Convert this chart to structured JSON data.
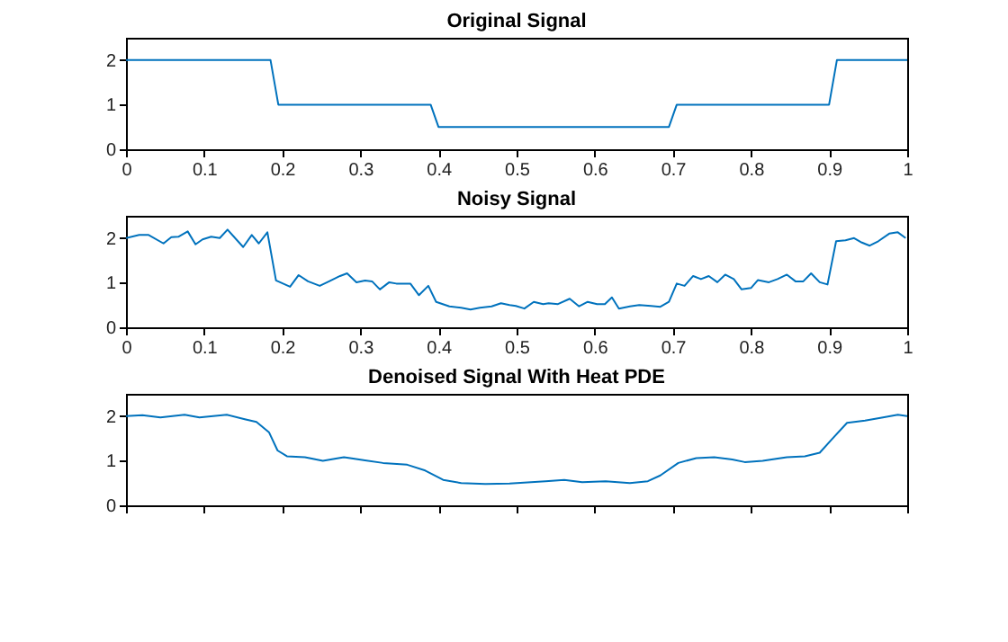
{
  "chart_data": [
    {
      "type": "line",
      "title": "Original Signal",
      "color": "#0072bd",
      "grid": false,
      "xlim": [
        0,
        1
      ],
      "ylim": [
        0,
        2.5
      ],
      "xticks": [
        0,
        0.1,
        0.2,
        0.3,
        0.4,
        0.5,
        0.6,
        0.7,
        0.8,
        0.9,
        1
      ],
      "yticks": [
        0,
        1,
        2
      ],
      "x": [
        0,
        0.185,
        0.195,
        0.39,
        0.4,
        0.695,
        0.705,
        0.9,
        0.91,
        1
      ],
      "values": [
        2,
        2,
        1,
        1,
        0.5,
        0.5,
        1,
        1,
        2,
        2
      ]
    },
    {
      "type": "line",
      "title": "Noisy Signal",
      "color": "#0072bd",
      "grid": false,
      "xlim": [
        0,
        1
      ],
      "ylim": [
        0,
        2.5
      ],
      "xticks": [
        0,
        0.1,
        0.2,
        0.3,
        0.4,
        0.5,
        0.6,
        0.7,
        0.8,
        0.9,
        1
      ],
      "yticks": [
        0,
        1,
        2
      ],
      "x": [
        0,
        0.017,
        0.029,
        0.048,
        0.058,
        0.067,
        0.079,
        0.089,
        0.098,
        0.109,
        0.12,
        0.13,
        0.15,
        0.161,
        0.17,
        0.181,
        0.192,
        0.21,
        0.221,
        0.233,
        0.248,
        0.26,
        0.274,
        0.283,
        0.295,
        0.306,
        0.315,
        0.325,
        0.337,
        0.346,
        0.364,
        0.375,
        0.387,
        0.397,
        0.414,
        0.429,
        0.441,
        0.453,
        0.468,
        0.48,
        0.491,
        0.499,
        0.51,
        0.522,
        0.534,
        0.541,
        0.553,
        0.568,
        0.58,
        0.591,
        0.603,
        0.613,
        0.622,
        0.631,
        0.645,
        0.657,
        0.672,
        0.684,
        0.695,
        0.705,
        0.715,
        0.726,
        0.736,
        0.746,
        0.757,
        0.767,
        0.778,
        0.788,
        0.8,
        0.809,
        0.823,
        0.834,
        0.846,
        0.857,
        0.867,
        0.877,
        0.888,
        0.898,
        0.909,
        0.921,
        0.932,
        0.942,
        0.952,
        0.963,
        0.977,
        0.988,
        0.998
      ],
      "values": [
        2.0,
        2.07,
        2.07,
        1.88,
        2.02,
        2.03,
        2.15,
        1.86,
        1.97,
        2.03,
        2.0,
        2.19,
        1.8,
        2.07,
        1.88,
        2.13,
        1.05,
        0.91,
        1.17,
        1.03,
        0.93,
        1.03,
        1.15,
        1.21,
        1.01,
        1.05,
        1.03,
        0.85,
        1.01,
        0.98,
        0.98,
        0.72,
        0.93,
        0.57,
        0.47,
        0.44,
        0.4,
        0.44,
        0.47,
        0.54,
        0.5,
        0.48,
        0.42,
        0.57,
        0.52,
        0.54,
        0.52,
        0.64,
        0.47,
        0.57,
        0.52,
        0.52,
        0.67,
        0.42,
        0.47,
        0.5,
        0.48,
        0.46,
        0.57,
        0.98,
        0.93,
        1.15,
        1.08,
        1.15,
        1.01,
        1.18,
        1.08,
        0.85,
        0.88,
        1.06,
        1.01,
        1.08,
        1.18,
        1.03,
        1.03,
        1.21,
        1.01,
        0.96,
        1.93,
        1.95,
        2.0,
        1.9,
        1.83,
        1.93,
        2.1,
        2.13,
        2.0
      ]
    },
    {
      "type": "line",
      "title": "Denoised Signal With Heat PDE",
      "color": "#0072bd",
      "grid": false,
      "tick_labels": "y",
      "xlim": [
        0,
        1
      ],
      "ylim": [
        0,
        2.5
      ],
      "xticks": [
        0,
        0.1,
        0.2,
        0.3,
        0.4,
        0.5,
        0.6,
        0.7,
        0.8,
        0.9,
        1
      ],
      "yticks": [
        0,
        1,
        2
      ],
      "x": [
        0,
        0.021,
        0.044,
        0.075,
        0.094,
        0.129,
        0.152,
        0.167,
        0.183,
        0.194,
        0.206,
        0.229,
        0.252,
        0.279,
        0.306,
        0.329,
        0.36,
        0.383,
        0.406,
        0.429,
        0.46,
        0.491,
        0.537,
        0.561,
        0.584,
        0.614,
        0.645,
        0.668,
        0.684,
        0.707,
        0.73,
        0.753,
        0.776,
        0.792,
        0.815,
        0.846,
        0.869,
        0.888,
        0.904,
        0.923,
        0.946,
        0.969,
        0.988,
        1
      ],
      "values": [
        2.0,
        2.02,
        1.97,
        2.03,
        1.97,
        2.03,
        1.93,
        1.87,
        1.64,
        1.23,
        1.1,
        1.08,
        1.0,
        1.08,
        1.01,
        0.95,
        0.91,
        0.78,
        0.57,
        0.5,
        0.48,
        0.49,
        0.54,
        0.57,
        0.52,
        0.54,
        0.5,
        0.54,
        0.67,
        0.95,
        1.06,
        1.08,
        1.03,
        0.97,
        1.0,
        1.08,
        1.1,
        1.18,
        1.49,
        1.85,
        1.9,
        1.97,
        2.03,
        2.0
      ]
    }
  ]
}
